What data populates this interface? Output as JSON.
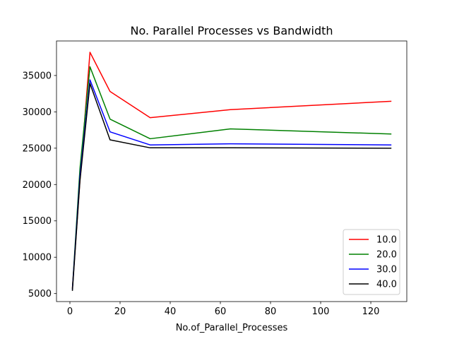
{
  "chart_data": {
    "type": "line",
    "title": "No. Parallel Processes vs Bandwidth",
    "xlabel": "No.of_Parallel_Processes",
    "ylabel": "",
    "xlim": [
      -5.35,
      134.35
    ],
    "ylim": [
      3900,
      39750
    ],
    "xticks": [
      0,
      20,
      40,
      60,
      80,
      100,
      120
    ],
    "yticks": [
      5000,
      10000,
      15000,
      20000,
      25000,
      30000,
      35000
    ],
    "grid": false,
    "legend_position": "lower-right",
    "x": [
      1,
      4,
      8,
      16,
      32,
      64,
      128
    ],
    "series": [
      {
        "name": "10.0",
        "color": "#ff0000",
        "values": [
          5800,
          20600,
          38200,
          32800,
          29200,
          30300,
          31450
        ]
      },
      {
        "name": "20.0",
        "color": "#008000",
        "values": [
          5700,
          22200,
          36200,
          29000,
          26300,
          27650,
          26950
        ]
      },
      {
        "name": "30.0",
        "color": "#0000ff",
        "values": [
          5600,
          21100,
          34400,
          27250,
          25450,
          25600,
          25450
        ]
      },
      {
        "name": "40.0",
        "color": "#000000",
        "values": [
          5450,
          20500,
          33900,
          26150,
          25050,
          25050,
          25000
        ]
      }
    ]
  }
}
